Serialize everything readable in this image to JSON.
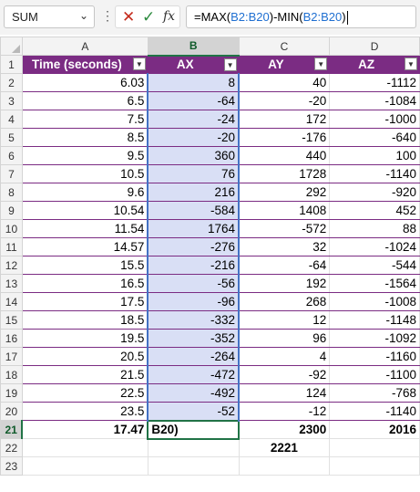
{
  "name_box": {
    "value": "SUM"
  },
  "formula_bar": {
    "text_parts": [
      "=MAX(",
      "B2:B20",
      ")-MIN(",
      "B2:B20",
      ")"
    ],
    "icons": [
      "cancel-icon",
      "enter-icon",
      "fx-icon"
    ]
  },
  "columns": [
    "A",
    "B",
    "C",
    "D"
  ],
  "selected_column": "B",
  "selected_row": "21",
  "row_numbers": [
    "1",
    "2",
    "3",
    "4",
    "5",
    "6",
    "7",
    "8",
    "9",
    "10",
    "11",
    "12",
    "13",
    "14",
    "15",
    "16",
    "17",
    "18",
    "19",
    "20",
    "21",
    "22",
    "23"
  ],
  "table": {
    "headers": [
      "Time (seconds)",
      "AX",
      "AY",
      "AZ"
    ],
    "header_color": "#7b2c83",
    "rows": [
      [
        "6.03",
        "8",
        "40",
        "-1112"
      ],
      [
        "6.5",
        "-64",
        "-20",
        "-1084"
      ],
      [
        "7.5",
        "-24",
        "172",
        "-1000"
      ],
      [
        "8.5",
        "-20",
        "-176",
        "-640"
      ],
      [
        "9.5",
        "360",
        "440",
        "100"
      ],
      [
        "10.5",
        "76",
        "1728",
        "-1140"
      ],
      [
        "9.6",
        "216",
        "292",
        "-920"
      ],
      [
        "10.54",
        "-584",
        "1408",
        "452"
      ],
      [
        "11.54",
        "1764",
        "-572",
        "88"
      ],
      [
        "14.57",
        "-276",
        "32",
        "-1024"
      ],
      [
        "15.5",
        "-216",
        "-64",
        "-544"
      ],
      [
        "16.5",
        "-56",
        "192",
        "-1564"
      ],
      [
        "17.5",
        "-96",
        "268",
        "-1008"
      ],
      [
        "18.5",
        "-332",
        "12",
        "-1148"
      ],
      [
        "19.5",
        "-352",
        "96",
        "-1092"
      ],
      [
        "20.5",
        "-264",
        "4",
        "-1160"
      ],
      [
        "21.5",
        "-472",
        "-92",
        "-1100"
      ],
      [
        "22.5",
        "-492",
        "124",
        "-768"
      ],
      [
        "23.5",
        "-52",
        "-12",
        "-1140"
      ]
    ],
    "totals": [
      "17.47",
      "B20)",
      "2300",
      "2016"
    ],
    "row22_c": "2221"
  }
}
